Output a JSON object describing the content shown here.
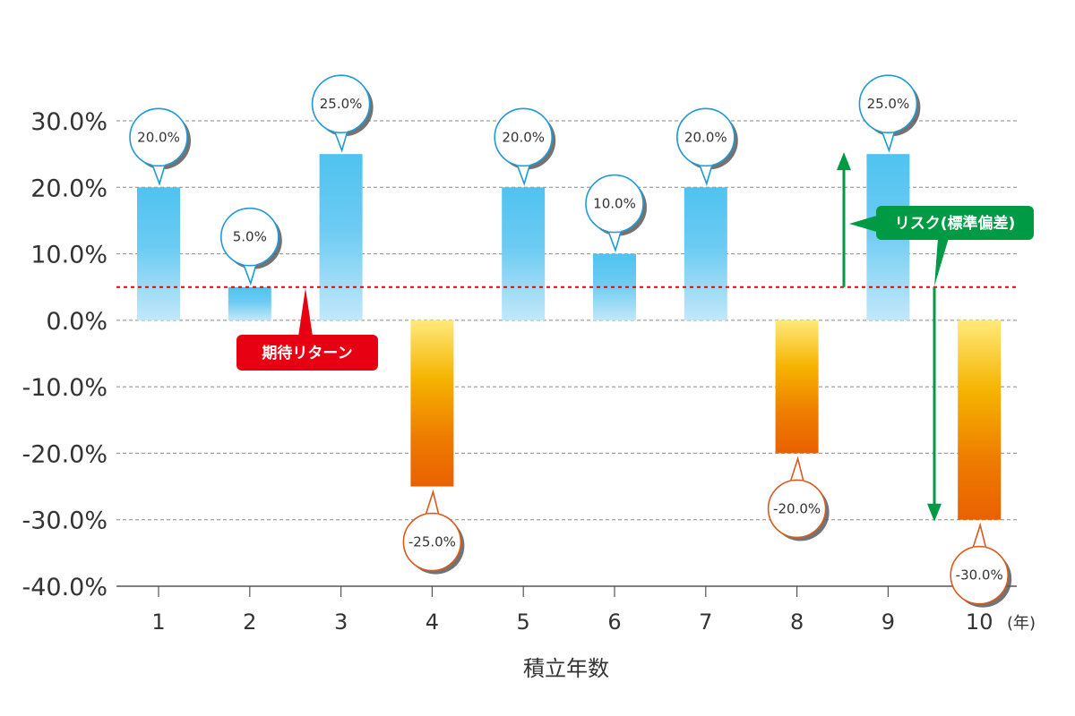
{
  "chart_data": {
    "type": "bar",
    "categories": [
      "1",
      "2",
      "3",
      "4",
      "5",
      "6",
      "7",
      "8",
      "9",
      "10"
    ],
    "values": [
      20.0,
      5.0,
      25.0,
      -25.0,
      20.0,
      10.0,
      20.0,
      -20.0,
      25.0,
      -30.0
    ],
    "data_labels": [
      "20.0%",
      "5.0%",
      "25.0%",
      "-25.0%",
      "20.0%",
      "10.0%",
      "20.0%",
      "-20.0%",
      "25.0%",
      "-30.0%"
    ],
    "y_ticks": [
      "30.0%",
      "20.0%",
      "10.0%",
      "0.0%",
      "-10.0%",
      "-20.0%",
      "-30.0%",
      "-40.0%"
    ],
    "ylim": [
      -40,
      30
    ],
    "xlabel": "積立年数",
    "x_unit": "(年)",
    "expected_return": {
      "label": "期待リターン",
      "value": 5.0,
      "color": "#e60012"
    },
    "risk": {
      "label": "リスク(標準偏差)",
      "color": "#009944"
    },
    "colors": {
      "positive": "#4fc3f0",
      "positive_light": "#bfe6f8",
      "negative_top": "#ffe97a",
      "negative_mid": "#f5a300",
      "negative_bottom": "#ea6100",
      "grid": "#888888"
    },
    "grid": true
  }
}
